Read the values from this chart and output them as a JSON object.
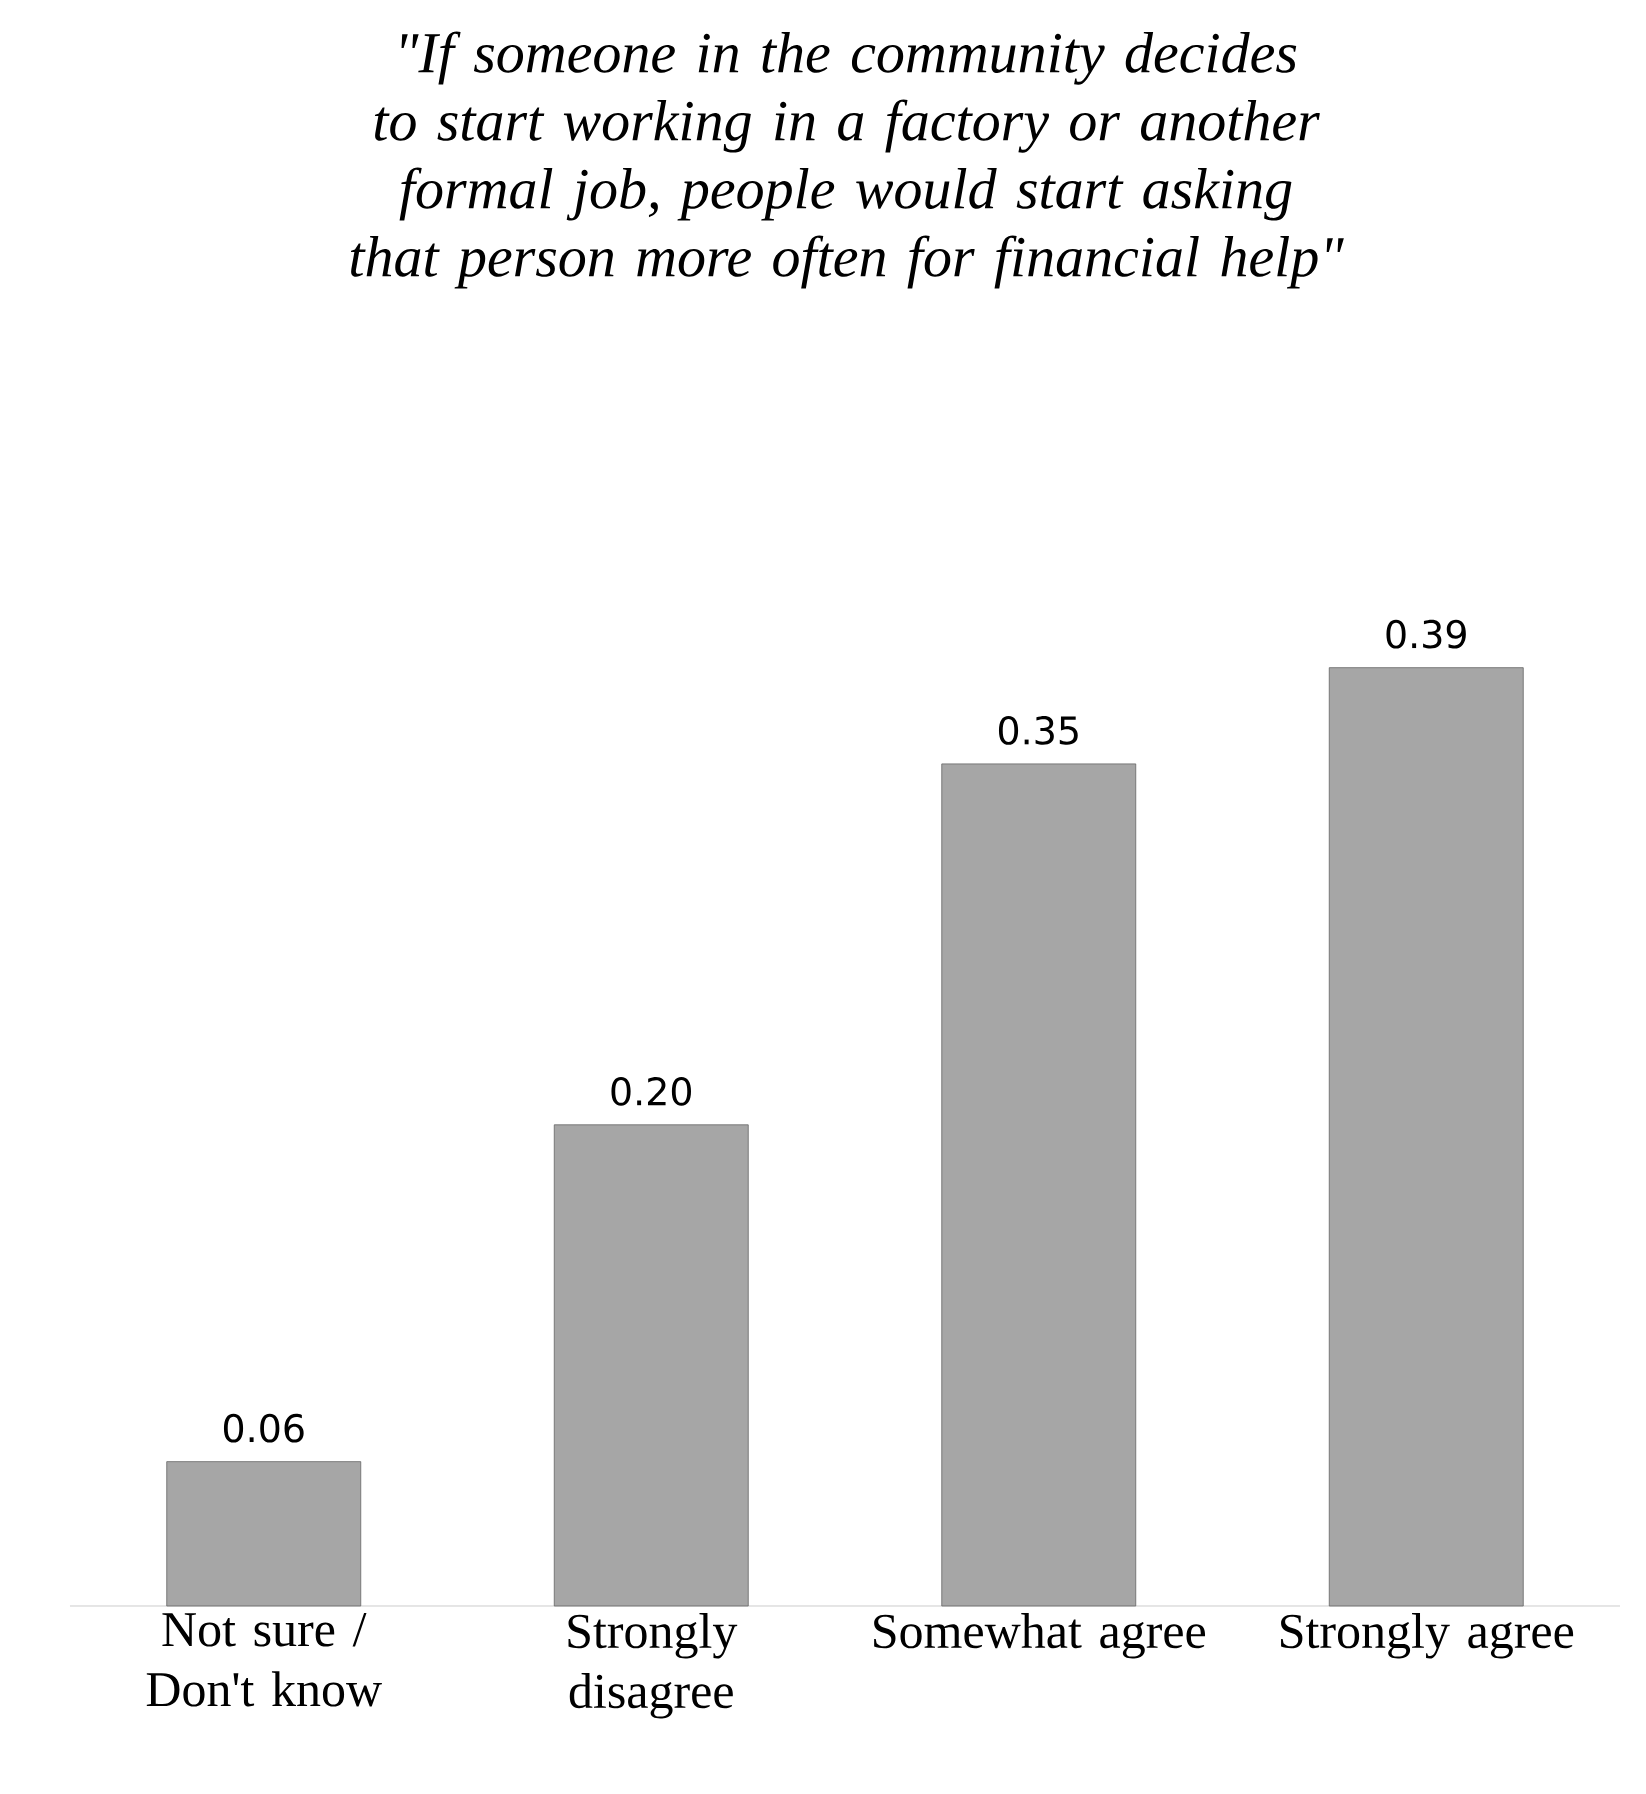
{
  "chart_data": {
    "type": "bar",
    "title": "\"If someone in the community decides to start working in a factory or another formal job, people would start asking that person more often for financial help\"",
    "categories": [
      "Not sure / Don't know",
      "Strongly disagree",
      "Somewhat agree",
      "Strongly agree"
    ],
    "values": [
      0.06,
      0.2,
      0.35,
      0.39
    ],
    "color": "#a6a6a6",
    "value_labels": [
      "0.06",
      "0.20",
      "0.35",
      "0.39"
    ]
  }
}
